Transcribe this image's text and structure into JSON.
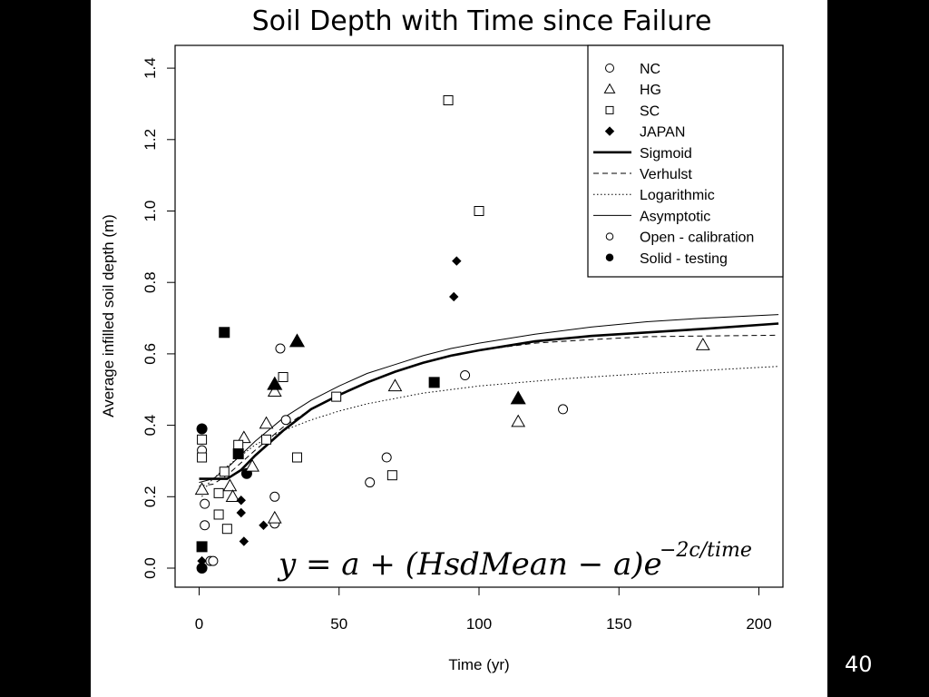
{
  "slide": {
    "title": "Soil Depth with Time since Failure",
    "page_number": "40"
  },
  "chart_data": {
    "type": "scatter",
    "title": "",
    "xlabel": "Time (yr)",
    "ylabel": "Average infilled soil depth (m)",
    "xlim": [
      0,
      207
    ],
    "ylim": [
      0,
      1.42
    ],
    "x_ticks": [
      0,
      50,
      100,
      150,
      200
    ],
    "y_ticks": [
      0.0,
      0.2,
      0.4,
      0.6,
      0.8,
      1.0,
      1.2,
      1.4
    ],
    "x_tick_labels": [
      "0",
      "50",
      "100",
      "150",
      "200"
    ],
    "y_tick_labels": [
      "0.0",
      "0.2",
      "0.4",
      "0.6",
      "0.8",
      "1.0",
      "1.2",
      "1.4"
    ],
    "grid": false,
    "legend_position": "top-right",
    "legend": [
      {
        "label": "NC",
        "marker": "circle-open"
      },
      {
        "label": "HG",
        "marker": "triangle-open"
      },
      {
        "label": "SC",
        "marker": "square-open"
      },
      {
        "label": "JAPAN",
        "marker": "diamond-filled"
      },
      {
        "label": "Sigmoid",
        "line": "solid-thick"
      },
      {
        "label": "Verhulst",
        "line": "dashed"
      },
      {
        "label": "Logarithmic",
        "line": "dotted"
      },
      {
        "label": "Asymptotic",
        "line": "solid-thin"
      },
      {
        "label": "Open - calibration",
        "marker": "circle-open-small"
      },
      {
        "label": "Solid - testing",
        "marker": "circle-filled-small"
      }
    ],
    "equation": {
      "main": "y = a + (HsdMean − a)e",
      "exponent": "−2c/time"
    },
    "series": [
      {
        "name": "NC",
        "marker": "circle",
        "points": [
          {
            "x": 1,
            "y": 0.33,
            "filled": false
          },
          {
            "x": 2,
            "y": 0.18,
            "filled": false
          },
          {
            "x": 2,
            "y": 0.12,
            "filled": false
          },
          {
            "x": 4,
            "y": 0.02,
            "filled": false
          },
          {
            "x": 5,
            "y": 0.02,
            "filled": false
          },
          {
            "x": 27,
            "y": 0.2,
            "filled": false
          },
          {
            "x": 27,
            "y": 0.125,
            "filled": false
          },
          {
            "x": 29,
            "y": 0.615,
            "filled": false
          },
          {
            "x": 31,
            "y": 0.415,
            "filled": false
          },
          {
            "x": 61,
            "y": 0.24,
            "filled": false
          },
          {
            "x": 67,
            "y": 0.31,
            "filled": false
          },
          {
            "x": 95,
            "y": 0.54,
            "filled": false
          },
          {
            "x": 130,
            "y": 0.445,
            "filled": false
          },
          {
            "x": 1,
            "y": 0.39,
            "filled": true
          },
          {
            "x": 1,
            "y": 0.0,
            "filled": true
          },
          {
            "x": 17,
            "y": 0.265,
            "filled": true
          }
        ]
      },
      {
        "name": "HG",
        "marker": "triangle",
        "points": [
          {
            "x": 1,
            "y": 0.22,
            "filled": false
          },
          {
            "x": 11,
            "y": 0.23,
            "filled": false
          },
          {
            "x": 12,
            "y": 0.2,
            "filled": false
          },
          {
            "x": 16,
            "y": 0.365,
            "filled": false
          },
          {
            "x": 19,
            "y": 0.285,
            "filled": false
          },
          {
            "x": 24,
            "y": 0.405,
            "filled": false
          },
          {
            "x": 27,
            "y": 0.495,
            "filled": false
          },
          {
            "x": 27,
            "y": 0.14,
            "filled": false
          },
          {
            "x": 70,
            "y": 0.51,
            "filled": false
          },
          {
            "x": 114,
            "y": 0.41,
            "filled": false
          },
          {
            "x": 180,
            "y": 0.625,
            "filled": false
          },
          {
            "x": 27,
            "y": 0.515,
            "filled": true
          },
          {
            "x": 35,
            "y": 0.635,
            "filled": true
          },
          {
            "x": 114,
            "y": 0.475,
            "filled": true
          }
        ]
      },
      {
        "name": "SC",
        "marker": "square",
        "points": [
          {
            "x": 1,
            "y": 0.36,
            "filled": false
          },
          {
            "x": 1,
            "y": 0.31,
            "filled": false
          },
          {
            "x": 7,
            "y": 0.15,
            "filled": false
          },
          {
            "x": 7,
            "y": 0.21,
            "filled": false
          },
          {
            "x": 9,
            "y": 0.27,
            "filled": false
          },
          {
            "x": 10,
            "y": 0.11,
            "filled": false
          },
          {
            "x": 14,
            "y": 0.345,
            "filled": false
          },
          {
            "x": 24,
            "y": 0.36,
            "filled": false
          },
          {
            "x": 30,
            "y": 0.535,
            "filled": false
          },
          {
            "x": 35,
            "y": 0.31,
            "filled": false
          },
          {
            "x": 49,
            "y": 0.48,
            "filled": false
          },
          {
            "x": 69,
            "y": 0.26,
            "filled": false
          },
          {
            "x": 89,
            "y": 1.31,
            "filled": false
          },
          {
            "x": 100,
            "y": 1.0,
            "filled": false
          },
          {
            "x": 1,
            "y": 0.06,
            "filled": true
          },
          {
            "x": 9,
            "y": 0.66,
            "filled": true
          },
          {
            "x": 14,
            "y": 0.32,
            "filled": true
          },
          {
            "x": 84,
            "y": 0.52,
            "filled": true
          }
        ]
      },
      {
        "name": "JAPAN",
        "marker": "diamond",
        "points": [
          {
            "x": 1,
            "y": 0.005,
            "filled": true
          },
          {
            "x": 1,
            "y": 0.02,
            "filled": true
          },
          {
            "x": 15,
            "y": 0.19,
            "filled": true
          },
          {
            "x": 15,
            "y": 0.155,
            "filled": true
          },
          {
            "x": 16,
            "y": 0.075,
            "filled": true
          },
          {
            "x": 23,
            "y": 0.12,
            "filled": true
          },
          {
            "x": 91,
            "y": 0.76,
            "filled": true
          },
          {
            "x": 92,
            "y": 0.86,
            "filled": true
          }
        ]
      }
    ],
    "curves": [
      {
        "name": "Sigmoid",
        "style": "solid-thick",
        "x": [
          0,
          10,
          15,
          20,
          30,
          40,
          50,
          60,
          70,
          80,
          90,
          100,
          120,
          140,
          160,
          180,
          207
        ],
        "y": [
          0.25,
          0.25,
          0.275,
          0.315,
          0.385,
          0.445,
          0.485,
          0.52,
          0.55,
          0.575,
          0.595,
          0.61,
          0.635,
          0.65,
          0.66,
          0.67,
          0.685
        ]
      },
      {
        "name": "Verhulst",
        "style": "dashed",
        "x": [
          0,
          5,
          10,
          20,
          30,
          40,
          50,
          60,
          70,
          80,
          90,
          100,
          120,
          140,
          160,
          180,
          207
        ],
        "y": [
          0.23,
          0.235,
          0.26,
          0.33,
          0.395,
          0.445,
          0.485,
          0.52,
          0.55,
          0.575,
          0.595,
          0.61,
          0.63,
          0.64,
          0.648,
          0.65,
          0.652
        ]
      },
      {
        "name": "Logarithmic",
        "style": "dotted",
        "x": [
          1,
          3,
          5,
          10,
          20,
          30,
          40,
          50,
          60,
          80,
          100,
          130,
          160,
          207
        ],
        "y": [
          0.2,
          0.235,
          0.25,
          0.285,
          0.345,
          0.385,
          0.415,
          0.44,
          0.46,
          0.49,
          0.51,
          0.53,
          0.545,
          0.565
        ]
      },
      {
        "name": "Asymptotic",
        "style": "solid-thin",
        "x": [
          0,
          5,
          10,
          20,
          30,
          40,
          50,
          60,
          70,
          80,
          90,
          100,
          120,
          140,
          160,
          180,
          207
        ],
        "y": [
          0.24,
          0.25,
          0.28,
          0.355,
          0.42,
          0.47,
          0.51,
          0.545,
          0.57,
          0.595,
          0.615,
          0.63,
          0.655,
          0.675,
          0.69,
          0.7,
          0.71
        ]
      }
    ]
  }
}
